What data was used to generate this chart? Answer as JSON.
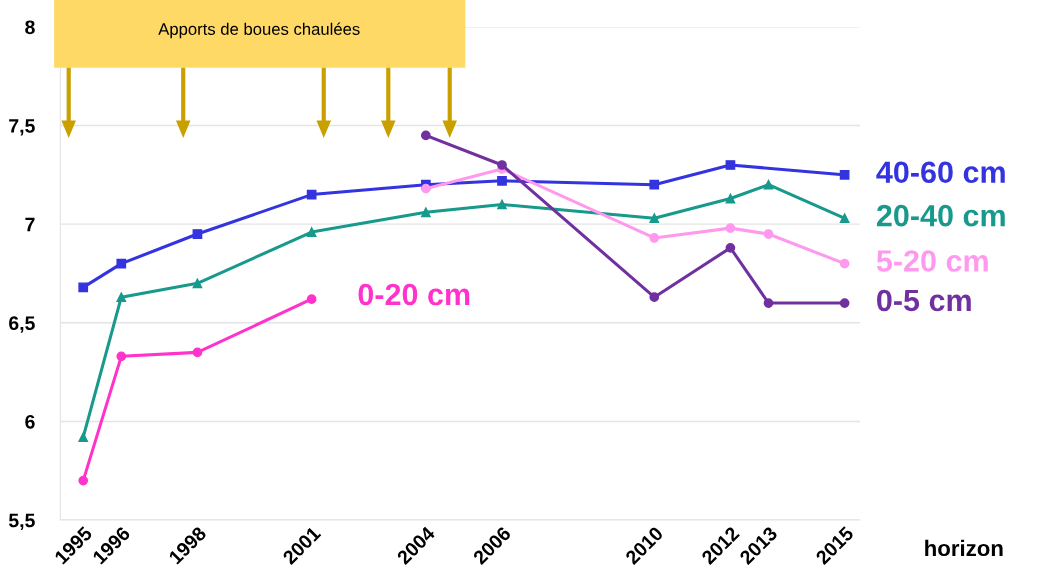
{
  "chart_data": {
    "type": "line",
    "xlabel": "horizon",
    "annotations": [
      "Apports de boues chaulées"
    ],
    "xlim": [
      1994.4,
      2015.4
    ],
    "ylim": [
      5.5,
      8
    ],
    "xticks": [
      1995,
      1996,
      1998,
      2001,
      2004,
      2006,
      2010,
      2012,
      2013,
      2015
    ],
    "yticks": [
      {
        "value": 5.5,
        "label": "5,5"
      },
      6,
      {
        "value": 6.5,
        "label": "6,5"
      },
      7,
      {
        "value": 7.5,
        "label": "7,5"
      },
      8
    ],
    "grid": "y",
    "line_style": "solid",
    "series": [
      {
        "name": "40-60 cm",
        "color": "#3333e0",
        "marker": "square",
        "x": [
          1995,
          1996,
          1998,
          2001,
          2004,
          2006,
          2010,
          2012,
          2015
        ],
        "values": [
          6.68,
          6.8,
          6.95,
          7.15,
          7.2,
          7.22,
          7.2,
          7.3,
          7.25
        ]
      },
      {
        "name": "20-40 cm",
        "color": "#17998c",
        "marker": "triangle",
        "x": [
          1995,
          1996,
          1998,
          2001,
          2004,
          2006,
          2010,
          2012,
          2013,
          2015
        ],
        "values": [
          5.92,
          6.63,
          6.7,
          6.96,
          7.06,
          7.1,
          7.03,
          7.13,
          7.2,
          7.03
        ]
      },
      {
        "name": "0-20 cm",
        "color": "#ff33cc",
        "marker": "circle",
        "x": [
          1995,
          1996,
          1998,
          2001
        ],
        "values": [
          5.7,
          6.33,
          6.35,
          6.62
        ]
      },
      {
        "name": "5-20 cm",
        "color": "#ff99ee",
        "marker": "circle",
        "x": [
          2004,
          2006,
          2010,
          2012,
          2013,
          2015
        ],
        "values": [
          7.18,
          7.28,
          6.93,
          6.98,
          6.95,
          6.8
        ]
      },
      {
        "name": "0-5 cm",
        "color": "#7030a0",
        "marker": "circle",
        "x": [
          2004,
          2006,
          2010,
          2012,
          2013,
          2015
        ],
        "values": [
          7.45,
          7.3,
          6.63,
          6.88,
          6.6,
          6.6
        ]
      }
    ]
  }
}
